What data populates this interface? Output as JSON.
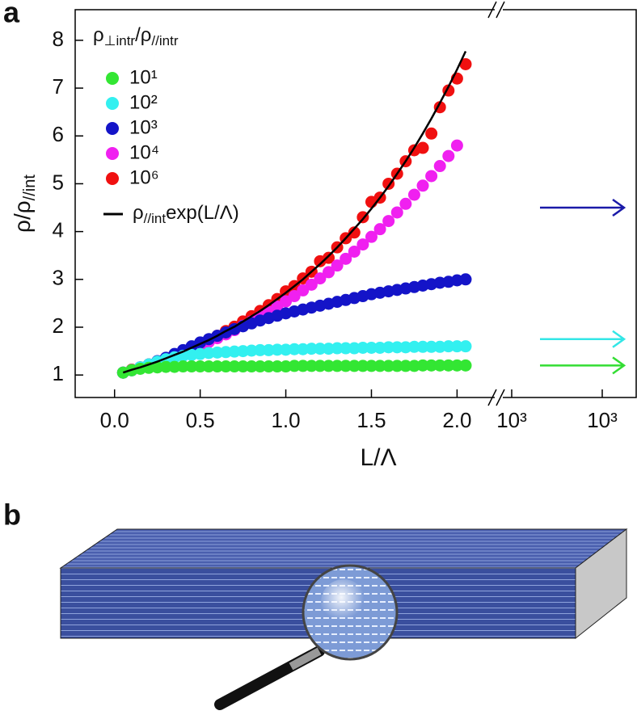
{
  "panel_labels": [
    "a",
    "b"
  ],
  "chart_data": {
    "type": "scatter",
    "legend_title_parts": [
      "ρ",
      "⊥intr",
      "/ρ",
      "//intr"
    ],
    "ylabel_parts": [
      "ρ/ρ",
      "//int"
    ],
    "xlabel": "L/Λ",
    "x": [
      0.05,
      0.1,
      0.15,
      0.2,
      0.25,
      0.3,
      0.35,
      0.4,
      0.45,
      0.5,
      0.55,
      0.6,
      0.65,
      0.7,
      0.75,
      0.8,
      0.85,
      0.9,
      0.95,
      1.0,
      1.05,
      1.1,
      1.15,
      1.2,
      1.25,
      1.3,
      1.35,
      1.4,
      1.45,
      1.5,
      1.55,
      1.6,
      1.65,
      1.7,
      1.75,
      1.8,
      1.85,
      1.9,
      1.95,
      2.0,
      2.05
    ],
    "series": [
      {
        "name": "10¹",
        "color": "#33e633",
        "values": [
          1.05,
          1.1,
          1.13,
          1.15,
          1.16,
          1.17,
          1.17,
          1.18,
          1.18,
          1.18,
          1.18,
          1.18,
          1.18,
          1.18,
          1.18,
          1.18,
          1.18,
          1.18,
          1.18,
          1.18,
          1.19,
          1.19,
          1.19,
          1.19,
          1.19,
          1.19,
          1.19,
          1.19,
          1.19,
          1.19,
          1.19,
          1.19,
          1.19,
          1.19,
          1.19,
          1.2,
          1.2,
          1.2,
          1.2,
          1.2,
          1.2
        ]
      },
      {
        "name": "10²",
        "color": "#33f0f0",
        "values": [
          1.05,
          1.1,
          1.16,
          1.22,
          1.28,
          1.33,
          1.37,
          1.4,
          1.42,
          1.44,
          1.46,
          1.47,
          1.48,
          1.49,
          1.5,
          1.51,
          1.52,
          1.52,
          1.53,
          1.53,
          1.54,
          1.54,
          1.55,
          1.55,
          1.55,
          1.56,
          1.56,
          1.56,
          1.57,
          1.57,
          1.57,
          1.58,
          1.58,
          1.58,
          1.59,
          1.59,
          1.59,
          1.59,
          1.6,
          1.6,
          1.6
        ]
      },
      {
        "name": "10³",
        "color": "#1414c8",
        "values": [
          1.05,
          1.1,
          1.16,
          1.22,
          1.29,
          1.36,
          1.44,
          1.52,
          1.6,
          1.68,
          1.75,
          1.82,
          1.89,
          1.96,
          2.02,
          2.08,
          2.14,
          2.19,
          2.24,
          2.29,
          2.33,
          2.37,
          2.41,
          2.45,
          2.49,
          2.53,
          2.57,
          2.61,
          2.65,
          2.69,
          2.72,
          2.75,
          2.78,
          2.81,
          2.84,
          2.87,
          2.9,
          2.93,
          2.95,
          2.98,
          3.0
        ]
      },
      {
        "name": "10⁴",
        "color": "#f020f0",
        "values": [
          1.05,
          1.1,
          1.15,
          1.21,
          1.27,
          1.33,
          1.4,
          1.47,
          1.54,
          1.61,
          1.69,
          1.77,
          1.85,
          1.94,
          2.03,
          2.12,
          2.22,
          2.32,
          2.43,
          2.54,
          2.65,
          2.77,
          2.89,
          3.02,
          3.15,
          3.29,
          3.43,
          3.58,
          3.73,
          3.89,
          4.05,
          4.22,
          4.4,
          4.58,
          4.77,
          4.96,
          5.16,
          5.37,
          5.58,
          5.8,
          null
        ]
      },
      {
        "name": "10⁶",
        "color": "#f01010",
        "values": [
          1.05,
          1.11,
          1.16,
          1.22,
          1.28,
          1.35,
          1.42,
          1.49,
          1.57,
          1.65,
          1.73,
          1.82,
          1.92,
          2.01,
          2.12,
          2.23,
          2.34,
          2.46,
          2.59,
          2.75,
          2.86,
          3.02,
          3.16,
          3.38,
          3.45,
          3.67,
          3.86,
          3.98,
          4.3,
          4.62,
          4.71,
          5.0,
          5.21,
          5.47,
          5.7,
          5.75,
          6.05,
          6.6,
          6.95,
          7.2,
          7.5
        ]
      }
    ],
    "fit": {
      "name_parts": [
        "ρ",
        "//int",
        "exp(L/Λ)"
      ],
      "color": "#000000",
      "values": [
        1.05,
        1.11,
        1.16,
        1.22,
        1.28,
        1.35,
        1.42,
        1.49,
        1.57,
        1.65,
        1.73,
        1.82,
        1.92,
        2.01,
        2.12,
        2.23,
        2.34,
        2.46,
        2.59,
        2.72,
        2.86,
        3.0,
        3.16,
        3.32,
        3.49,
        3.67,
        3.86,
        4.06,
        4.26,
        4.48,
        4.71,
        4.95,
        5.21,
        5.47,
        5.75,
        6.05,
        6.36,
        6.69,
        7.03,
        7.39,
        7.77
      ]
    },
    "arrows": [
      {
        "value": 4.5,
        "color": "#1a1aa8"
      },
      {
        "value": 1.75,
        "color": "#33e6e6"
      },
      {
        "value": 1.2,
        "color": "#33dd33"
      }
    ],
    "break_ticks": [
      "10³",
      "10³"
    ],
    "xlim": [
      -0.23,
      2.22
    ],
    "ylim": [
      0.53,
      8.64
    ],
    "xticks": [
      {
        "value": 0,
        "label": "0.0"
      },
      0.5,
      {
        "value": 1,
        "label": "1.0"
      },
      1.5,
      {
        "value": 2,
        "label": "2.0"
      }
    ],
    "yticks": [
      1,
      2,
      3,
      4,
      5,
      6,
      7,
      8
    ]
  }
}
